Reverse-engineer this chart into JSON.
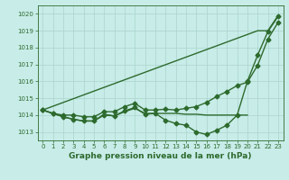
{
  "background_color": "#c8ece8",
  "grid_color": "#aad4cc",
  "line_color": "#2d6a2d",
  "marker": "D",
  "markersize": 2.5,
  "linewidth": 1.0,
  "title": "Graphe pression niveau de la mer (hPa)",
  "xlim": [
    -0.5,
    23.5
  ],
  "ylim": [
    1012.5,
    1020.5
  ],
  "yticks": [
    1013,
    1014,
    1015,
    1016,
    1017,
    1018,
    1019,
    1020
  ],
  "xticks": [
    0,
    1,
    2,
    3,
    4,
    5,
    6,
    7,
    8,
    9,
    10,
    11,
    12,
    13,
    14,
    15,
    16,
    17,
    18,
    19,
    20,
    21,
    22,
    23
  ],
  "series": [
    {
      "x": [
        0,
        21,
        22,
        23
      ],
      "y": [
        1014.3,
        1019.0,
        1019.0,
        1019.9
      ],
      "has_markers": false
    },
    {
      "x": [
        0,
        1,
        2,
        3,
        4,
        5,
        6,
        7,
        8,
        9,
        10,
        11,
        12,
        13,
        14,
        15,
        16,
        17,
        18,
        19,
        20,
        21,
        22,
        23
      ],
      "y": [
        1014.3,
        1014.1,
        1014.0,
        1014.0,
        1013.9,
        1013.9,
        1014.2,
        1014.2,
        1014.5,
        1014.7,
        1014.3,
        1014.3,
        1014.35,
        1014.3,
        1014.4,
        1014.5,
        1014.75,
        1015.1,
        1015.4,
        1015.75,
        1015.95,
        1016.95,
        1018.5,
        1019.5
      ],
      "has_markers": true
    },
    {
      "x": [
        0,
        1,
        2,
        3,
        4,
        5,
        6,
        7,
        8,
        9,
        10,
        11,
        12,
        13,
        14,
        15,
        16,
        17,
        18,
        19,
        20,
        21,
        22,
        23
      ],
      "y": [
        1014.3,
        1014.1,
        1013.9,
        1013.75,
        1013.65,
        1013.65,
        1014.0,
        1013.95,
        1014.25,
        1014.45,
        1014.05,
        1014.1,
        1013.7,
        1013.5,
        1013.4,
        1013.0,
        1012.85,
        1013.1,
        1013.4,
        1014.0,
        1016.0,
        1017.55,
        1018.95,
        1019.85
      ],
      "has_markers": true
    },
    {
      "x": [
        0,
        1,
        2,
        3,
        4,
        5,
        6,
        7,
        8,
        9,
        10,
        11,
        12,
        13,
        14,
        15,
        16,
        17,
        18,
        19,
        20
      ],
      "y": [
        1014.3,
        1014.1,
        1013.9,
        1013.75,
        1013.65,
        1013.65,
        1014.05,
        1013.95,
        1014.2,
        1014.4,
        1014.1,
        1014.1,
        1014.1,
        1014.1,
        1014.05,
        1014.05,
        1014.0,
        1014.0,
        1014.0,
        1014.0,
        1014.0
      ],
      "has_markers": false
    }
  ]
}
